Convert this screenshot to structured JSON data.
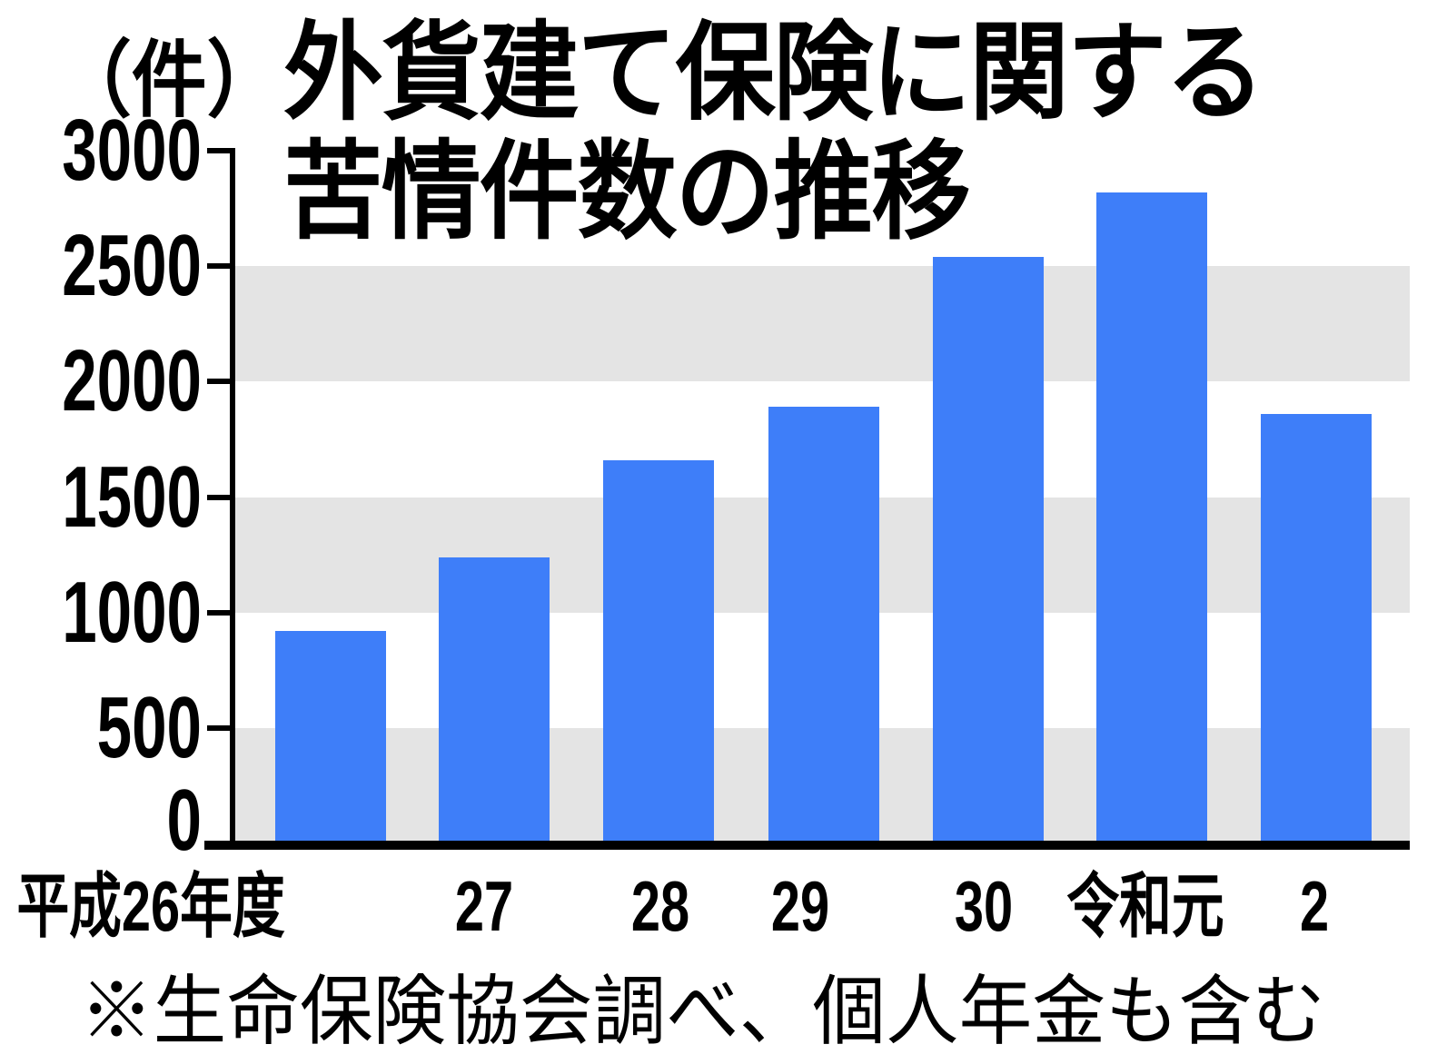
{
  "unit_label": "（件）",
  "title_lines": [
    "外貨建て保険に関する",
    "苦情件数の推移"
  ],
  "footnote": "※生命保険協会調べ、個人年金も含む",
  "colors": {
    "bar": "#3e7ef9",
    "band": "#e4e4e4",
    "axis": "#000000",
    "background": "#ffffff"
  },
  "chart_data": {
    "type": "bar",
    "title": "外貨建て保険に関する苦情件数の推移",
    "unit": "件",
    "categories": [
      "平成26年度",
      "27",
      "28",
      "29",
      "30",
      "令和元",
      "2"
    ],
    "values": [
      920,
      1240,
      1660,
      1890,
      2540,
      2820,
      1860
    ],
    "xlabel": "",
    "ylabel": "（件）",
    "ylim": [
      0,
      3000
    ],
    "yticks": [
      0,
      500,
      1000,
      1500,
      2000,
      2500,
      3000
    ],
    "grid": "alternating horizontal gray bands",
    "band_ranges": [
      [
        0,
        500
      ],
      [
        1000,
        1500
      ],
      [
        2000,
        2500
      ]
    ],
    "legend": "none",
    "bar_color": "#3e7ef9",
    "band_color": "#e4e4e4",
    "source_note": "※生命保険協会調べ、個人年金も含む"
  }
}
